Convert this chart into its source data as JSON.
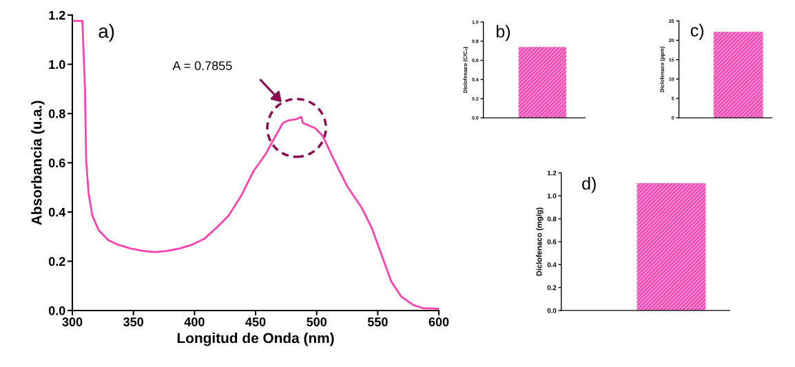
{
  "chart_data": [
    {
      "type": "line",
      "xlabel": "Longitud de Onda (nm)",
      "ylabel": "Absorbancia (u.a.)",
      "xlim": [
        300,
        600
      ],
      "ylim": [
        0,
        1.2
      ],
      "xticks": [
        300,
        350,
        400,
        450,
        500,
        550,
        600
      ],
      "yticks": [
        {
          "value": 0,
          "label": "0.0"
        },
        {
          "value": 0.2,
          "label": "0.2"
        },
        {
          "value": 0.4,
          "label": "0.4"
        },
        {
          "value": 0.6,
          "label": "0.6"
        },
        {
          "value": 0.8,
          "label": "0.8"
        },
        {
          "value": 1.0,
          "label": "1.0"
        },
        {
          "value": 1.2,
          "label": "1.2"
        }
      ],
      "annotations": [
        "a)",
        "A = 0.7855"
      ],
      "series": [
        {
          "color": "#ff40b0",
          "x": [
            300,
            308.2,
            310.3,
            311.3,
            313.3,
            316.3,
            321.4,
            329.3,
            337.5,
            347.5,
            357.6,
            367.7,
            377.8,
            387.8,
            397.9,
            408,
            418,
            428,
            438.2,
            448.3,
            458.3,
            468.4,
            472.4,
            476.4,
            482.5,
            487.5,
            488.6,
            498.6,
            504.7,
            514.7,
            524.8,
            536.9,
            545,
            553,
            561.1,
            569.1,
            579.2,
            587.2,
            600
          ],
          "values": [
            1.176,
            1.176,
            0.906,
            0.607,
            0.476,
            0.386,
            0.327,
            0.286,
            0.267,
            0.252,
            0.242,
            0.237,
            0.242,
            0.252,
            0.267,
            0.291,
            0.336,
            0.386,
            0.466,
            0.566,
            0.636,
            0.727,
            0.762,
            0.771,
            0.776,
            0.786,
            0.762,
            0.741,
            0.711,
            0.606,
            0.506,
            0.417,
            0.336,
            0.227,
            0.117,
            0.057,
            0.022,
            0.009,
            0.007
          ]
        }
      ]
    },
    {
      "type": "bar",
      "ylabel": "Diclofenaco (C/C₀)",
      "categories": [
        null
      ],
      "values": [
        0.74
      ],
      "color": "#ff4db8",
      "ylim": [
        0,
        1.0
      ],
      "tick_labels": "y",
      "yticks": [
        {
          "value": 0,
          "label": "0.0"
        },
        {
          "value": 0.2,
          "label": "0.2"
        },
        {
          "value": 0.4,
          "label": "0.4"
        },
        {
          "value": 0.6,
          "label": "0.6"
        },
        {
          "value": 0.8,
          "label": "0.8"
        },
        {
          "value": 1.0,
          "label": "1.0"
        }
      ],
      "annotations": [
        "b)"
      ]
    },
    {
      "type": "bar",
      "ylabel": "Diclofenaco (ppm)",
      "categories": [
        null
      ],
      "values": [
        22.2
      ],
      "color": "#ff4db8",
      "ylim": [
        0,
        25
      ],
      "tick_labels": "y",
      "yticks": [
        0,
        5,
        10,
        15,
        20,
        25
      ],
      "annotations": [
        "c)"
      ]
    },
    {
      "type": "bar",
      "ylabel": "Diclofenaco (mg/g)",
      "categories": [
        null
      ],
      "values": [
        1.11
      ],
      "color": "#ff4db8",
      "ylim": [
        0,
        1.2
      ],
      "tick_labels": "y",
      "yticks": [
        {
          "value": 0,
          "label": "0.0"
        },
        {
          "value": 0.2,
          "label": "0.2"
        },
        {
          "value": 0.4,
          "label": "0.4"
        },
        {
          "value": 0.6,
          "label": "0.6"
        },
        {
          "value": 0.8,
          "label": "0.8"
        },
        {
          "value": 1.0,
          "label": "1.0"
        },
        {
          "value": 1.2,
          "label": "1.2"
        }
      ],
      "annotations": [
        "d)"
      ]
    }
  ]
}
